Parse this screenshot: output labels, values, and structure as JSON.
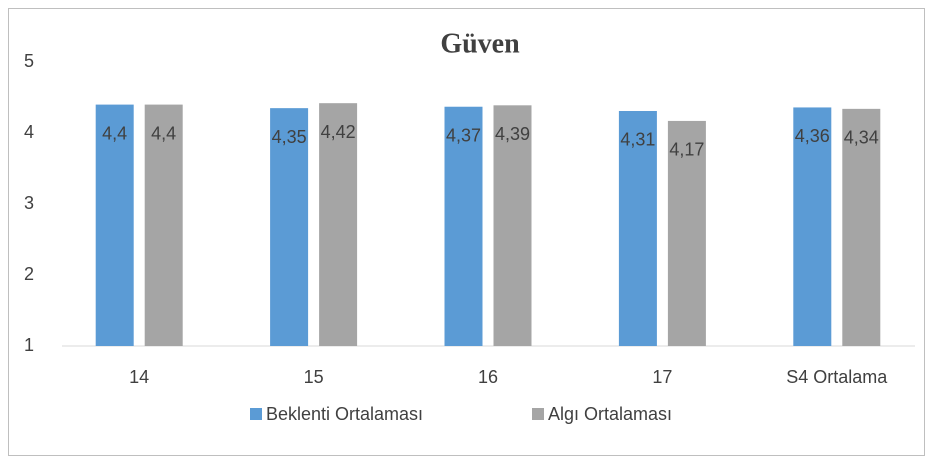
{
  "chart_data": {
    "type": "bar",
    "title": "Güven",
    "categories": [
      "14",
      "15",
      "16",
      "17",
      "S4 Ortalama"
    ],
    "series": [
      {
        "name": "Beklenti Ortalaması",
        "color": "#5b9bd5",
        "values": [
          4.4,
          4.35,
          4.37,
          4.31,
          4.36
        ],
        "value_labels": [
          "4,4",
          "4,35",
          "4,37",
          "4,31",
          "4,36"
        ]
      },
      {
        "name": "Algı Ortalaması",
        "color": "#a5a5a5",
        "values": [
          4.4,
          4.42,
          4.39,
          4.17,
          4.34
        ],
        "value_labels": [
          "4,4",
          "4,42",
          "4,39",
          "4,17",
          "4,34"
        ]
      }
    ],
    "ylim": [
      1,
      5
    ],
    "yticks": [
      1,
      2,
      3,
      4,
      5
    ],
    "grid": false,
    "legend": "bottom"
  }
}
